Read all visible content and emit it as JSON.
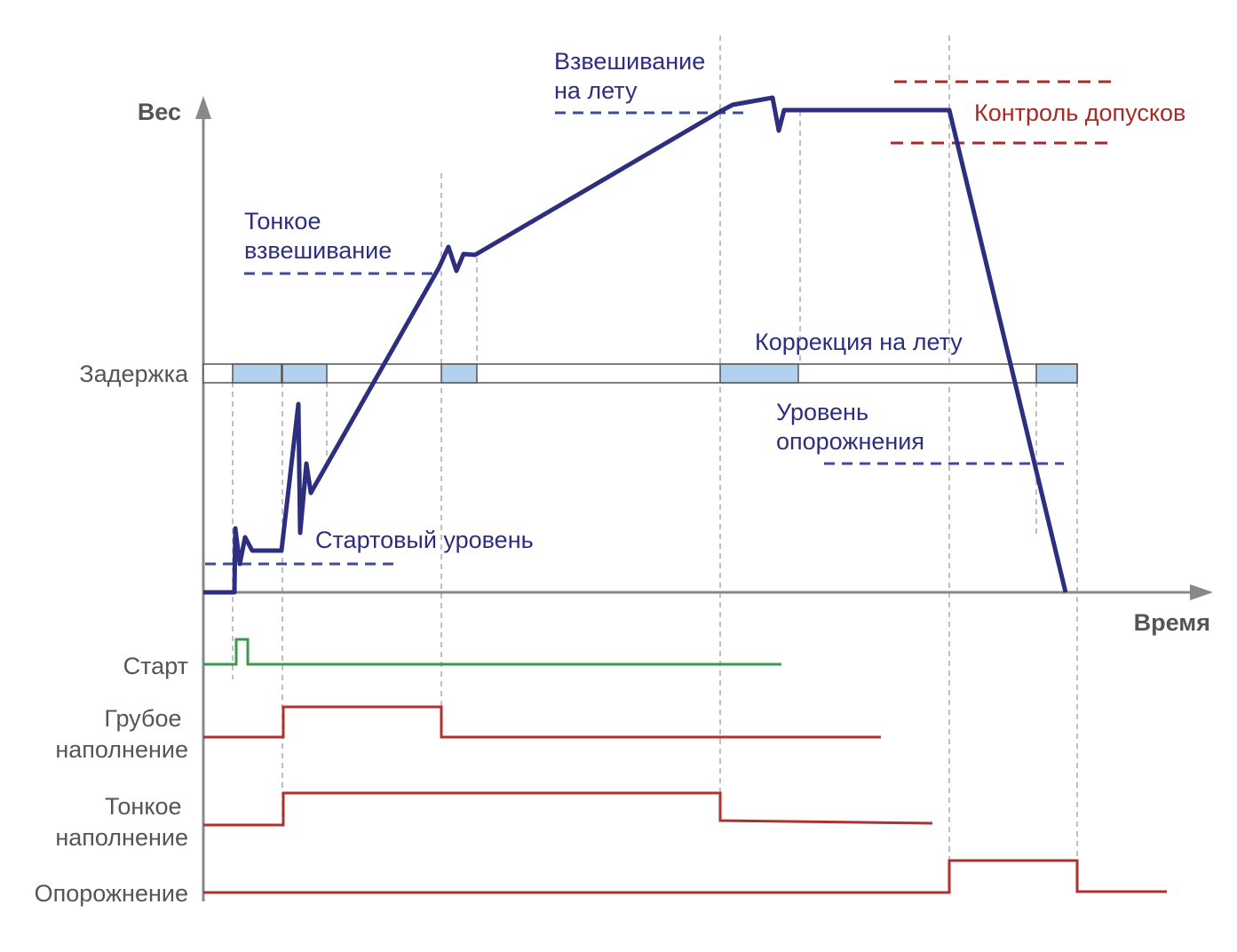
{
  "axes": {
    "y_label": "Вес",
    "x_label": "Время"
  },
  "delay_row": {
    "label": "Задержка"
  },
  "annotations": {
    "fine_weighing": [
      "Тонкое",
      "взвешивание"
    ],
    "weighing_on_fly": [
      "Взвешивание",
      "на лету"
    ],
    "tolerance_control": "Контроль допусков",
    "correction_on_fly": "Коррекция на лету",
    "empty_level": [
      "Уровень",
      "опорожнения"
    ],
    "start_level": "Стартовый уровень"
  },
  "signals": {
    "start": [
      "Старт"
    ],
    "coarse_fill": [
      "Грубое",
      "наполнение"
    ],
    "fine_fill": [
      "Тонкое",
      "наполнение"
    ],
    "emptying": [
      "Опорожнение"
    ]
  },
  "colors": {
    "weight_curve": "#2e2e7f",
    "blue_dashes": "#3d4c99",
    "tolerance": "#a52a2a",
    "start_signal": "#3a9a4a",
    "fill_signals": "#b03030",
    "delay_segment": "#b3d1ef"
  }
}
